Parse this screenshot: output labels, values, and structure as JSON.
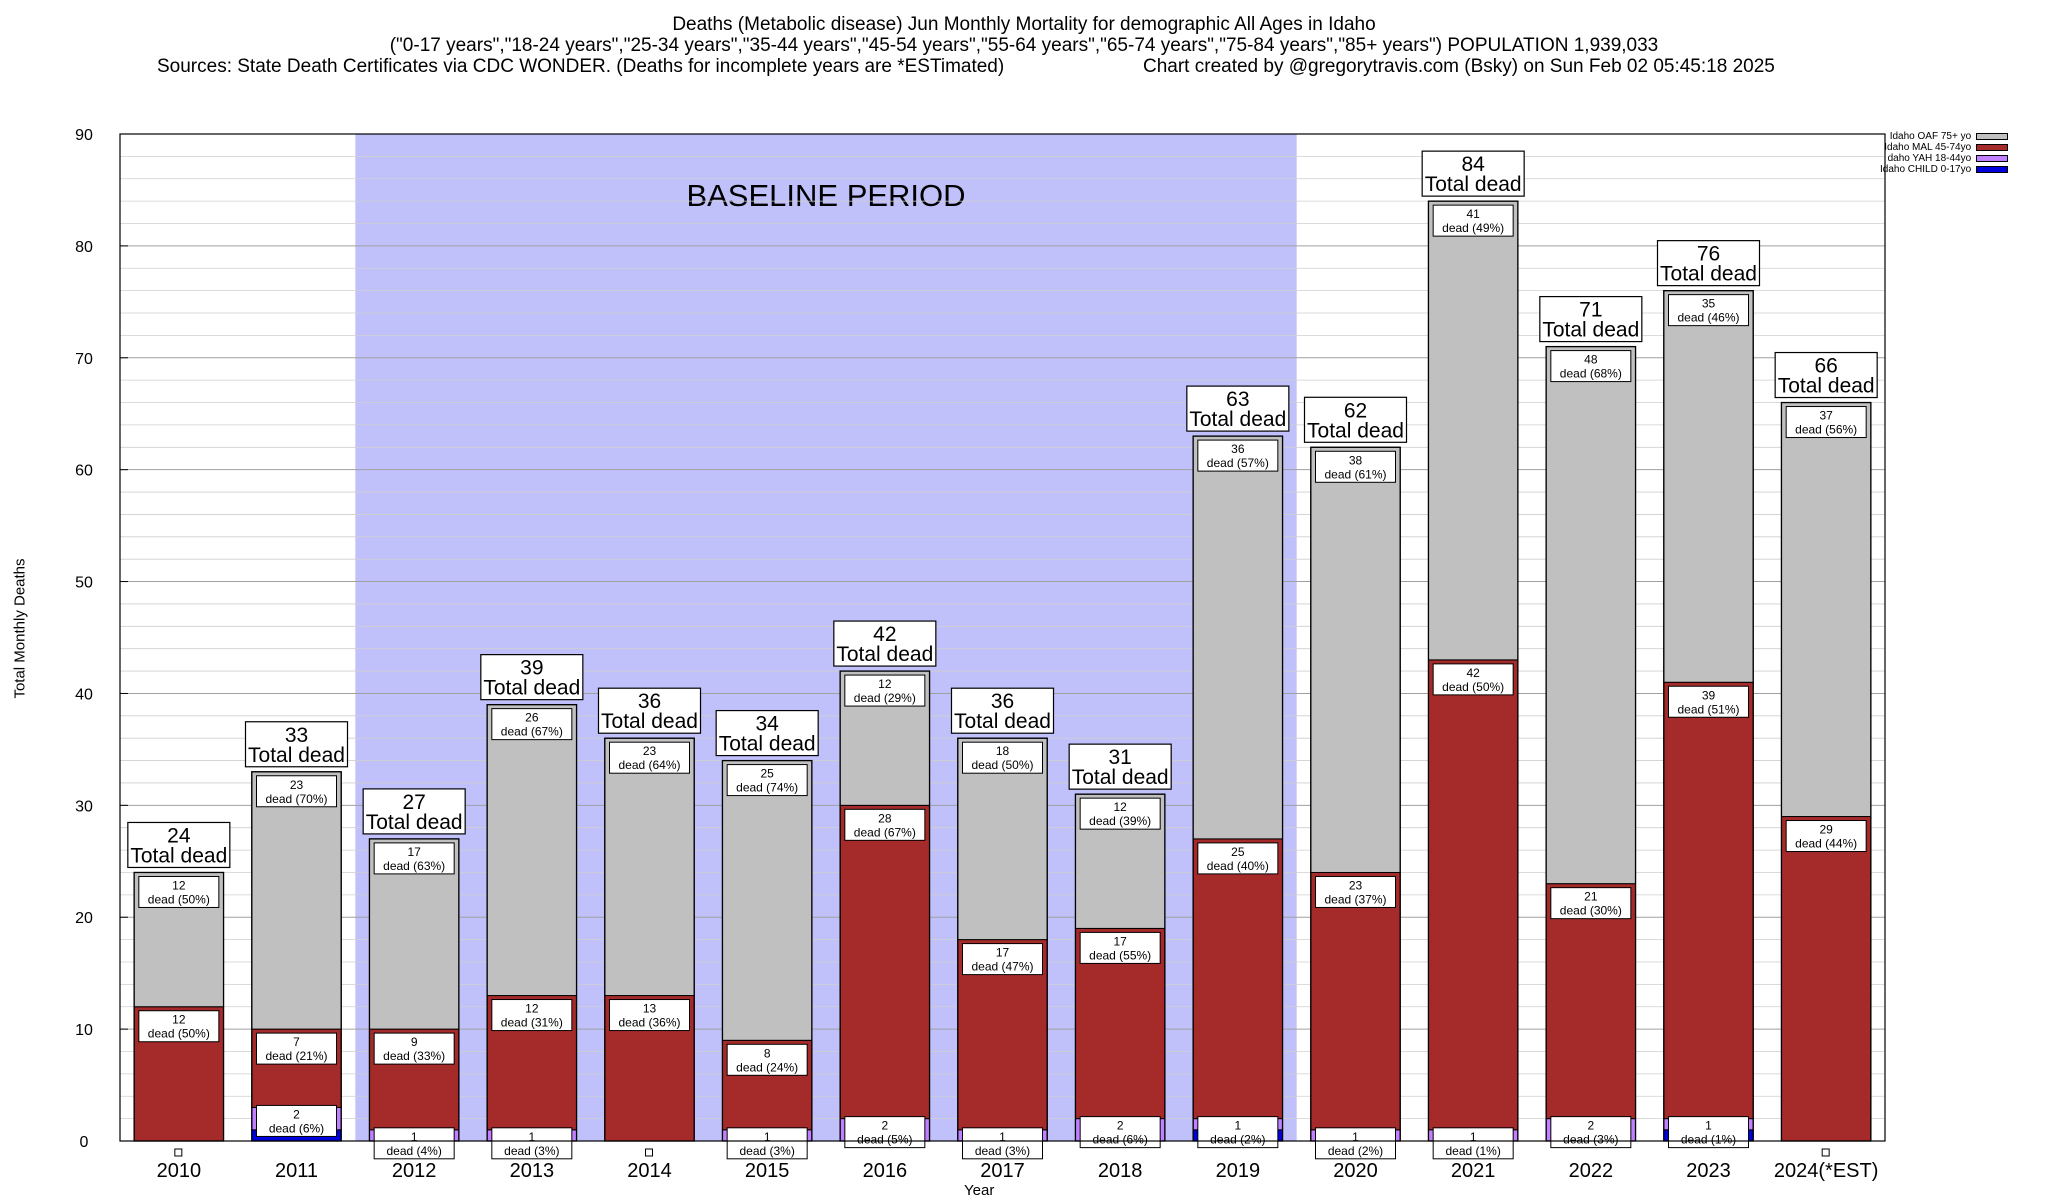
{
  "header": {
    "line1": "Deaths (Metabolic disease) Jun Monthly Mortality for demographic All Ages in Idaho",
    "line2": "(\"0-17 years\",\"18-24 years\",\"25-34 years\",\"35-44 years\",\"45-54 years\",\"55-64 years\",\"65-74 years\",\"75-84 years\",\"85+ years\") POPULATION 1,939,033",
    "line3_left": "Sources: State Death Certificates via CDC WONDER. (Deaths for incomplete years are *ESTimated)",
    "line3_right": "Chart created by @gregorytravis.com (Bsky) on Sun Feb 02 05:45:18 2025"
  },
  "colors": {
    "oaf": "#c0c0c0",
    "mal": "#a52a2a",
    "yah": "#c080ff",
    "child": "#0000dd",
    "baseline": "#c0c0fb"
  },
  "chart_data": {
    "type": "bar",
    "stacked": true,
    "xlabel": "Year",
    "ylabel": "Total Monthly Deaths",
    "ylim": [
      0,
      90
    ],
    "yticks": [
      0,
      10,
      20,
      30,
      40,
      50,
      60,
      70,
      80,
      90
    ],
    "grid": true,
    "legend_position": "top-right",
    "baseline_label": "BASELINE PERIOD",
    "baseline_range": [
      "2012",
      "2019"
    ],
    "total_suffix": "Total dead",
    "dead_word": "dead",
    "categories": [
      "2010",
      "2011",
      "2012",
      "2013",
      "2014",
      "2015",
      "2016",
      "2017",
      "2018",
      "2019",
      "2020",
      "2021",
      "2022",
      "2023",
      "2024(*EST)"
    ],
    "totals": [
      24,
      33,
      27,
      39,
      36,
      34,
      42,
      36,
      31,
      63,
      62,
      84,
      71,
      76,
      66
    ],
    "series": [
      {
        "name": "Idaho CHILD 0-17yo",
        "key": "child",
        "values": [
          0,
          1,
          0,
          0,
          0,
          0,
          0,
          0,
          0,
          1,
          0,
          0,
          0,
          1,
          0
        ],
        "pct": [
          0,
          0,
          0,
          0,
          0,
          0,
          0,
          0,
          0,
          0,
          0,
          0,
          0,
          0,
          0
        ],
        "show_label": false
      },
      {
        "name": "daho YAH 18-44yo",
        "key": "yah",
        "values": [
          0,
          2,
          1,
          1,
          0,
          1,
          2,
          1,
          2,
          1,
          1,
          1,
          2,
          1,
          0
        ],
        "pct": [
          0,
          6,
          4,
          3,
          0,
          3,
          5,
          3,
          6,
          2,
          2,
          1,
          3,
          1,
          0
        ],
        "show_label": true
      },
      {
        "name": "Idaho MAL 45-74yo",
        "key": "mal",
        "values": [
          12,
          7,
          9,
          12,
          13,
          8,
          28,
          17,
          17,
          25,
          23,
          42,
          21,
          39,
          29
        ],
        "pct": [
          50,
          21,
          33,
          31,
          36,
          24,
          67,
          47,
          55,
          40,
          37,
          50,
          30,
          51,
          44
        ],
        "show_label": true
      },
      {
        "name": "Idaho OAF 75+ yo",
        "key": "oaf",
        "values": [
          12,
          23,
          17,
          26,
          23,
          25,
          12,
          18,
          12,
          36,
          38,
          41,
          48,
          35,
          37
        ],
        "pct": [
          50,
          70,
          63,
          67,
          64,
          74,
          29,
          50,
          39,
          57,
          61,
          49,
          68,
          46,
          56
        ],
        "show_label": true
      }
    ]
  }
}
